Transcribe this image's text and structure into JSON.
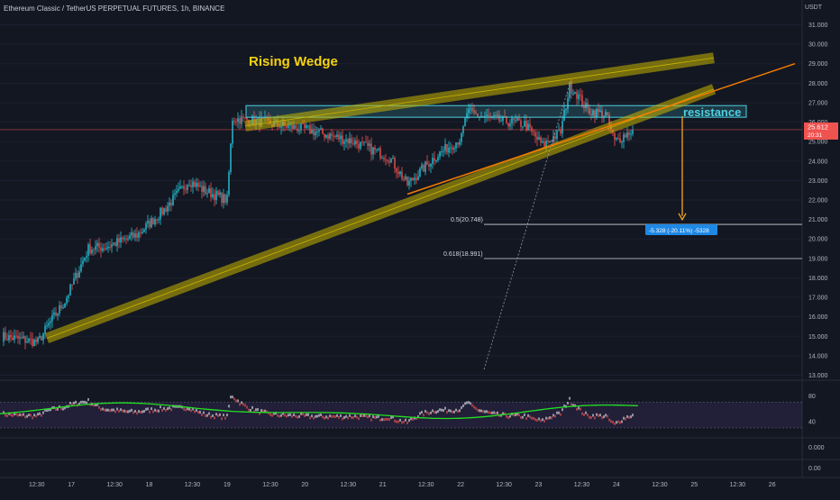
{
  "header": {
    "symbol": "Ethereum Classic / TetherUS PERPETUAL FUTURES, 1h, BINANCE",
    "currency": "USDT"
  },
  "price_axis": {
    "ticks": [
      "31.000",
      "30.000",
      "29.000",
      "28.000",
      "27.000",
      "26.000",
      "25.000",
      "24.000",
      "23.000",
      "22.000",
      "21.000",
      "20.000",
      "19.000",
      "18.000",
      "17.000",
      "16.000",
      "15.000",
      "14.000",
      "13.000"
    ]
  },
  "last_price": {
    "price": "25.612",
    "countdown": "20:31",
    "color": "#ef5350"
  },
  "time_axis": {
    "labels": [
      "12:30",
      "17",
      "12:30",
      "18",
      "12:30",
      "19",
      "12:30",
      "20",
      "12:30",
      "21",
      "12:30",
      "22",
      "12:30",
      "23",
      "12:30",
      "24",
      "12:30",
      "25",
      "12:30",
      "26"
    ]
  },
  "annotations": {
    "pattern_label": "Rising Wedge",
    "resistance_label": "resistance",
    "fib_05": "0.5(20.748)",
    "fib_0618": "0.618(18.991)",
    "measure": "-5.328 (-20.11%) -5328"
  },
  "indicator": {
    "ticks": [
      "80",
      "40"
    ],
    "lower_ticks": [
      "0.000",
      "0.00"
    ]
  },
  "colors": {
    "up": "#26c6da",
    "down": "#ef5350",
    "wedge": "#c9b400",
    "zone": "#4dd0e1",
    "trend": "#f57c00",
    "pattern_label": "#f5d20f",
    "osc_line": "#22e022",
    "measure": "#1e88e5"
  },
  "chart_data": {
    "type": "candlestick",
    "title": "Ethereum Classic / TetherUS PERPETUAL FUTURES, 1h, BINANCE",
    "ylim": [
      13,
      31.5
    ],
    "ylabel": "USDT",
    "x_labels": [
      "12:30",
      "17",
      "12:30",
      "18",
      "12:30",
      "19",
      "12:30",
      "20",
      "12:30",
      "21",
      "12:30",
      "22",
      "12:30",
      "23",
      "12:30",
      "24",
      "12:30",
      "25",
      "12:30",
      "26"
    ],
    "close_anchors": [
      {
        "bar": 0,
        "price": 15.0
      },
      {
        "bar": 20,
        "price": 14.7
      },
      {
        "bar": 26,
        "price": 15.6
      },
      {
        "bar": 35,
        "price": 16.8
      },
      {
        "bar": 48,
        "price": 19.5
      },
      {
        "bar": 58,
        "price": 19.6
      },
      {
        "bar": 75,
        "price": 20.2
      },
      {
        "bar": 90,
        "price": 21.5
      },
      {
        "bar": 104,
        "price": 23.0
      },
      {
        "bar": 112,
        "price": 22.5
      },
      {
        "bar": 125,
        "price": 22.0
      },
      {
        "bar": 128,
        "price": 26.2
      },
      {
        "bar": 145,
        "price": 26.0
      },
      {
        "bar": 170,
        "price": 25.6
      },
      {
        "bar": 195,
        "price": 25.0
      },
      {
        "bar": 215,
        "price": 24.2
      },
      {
        "bar": 225,
        "price": 22.8
      },
      {
        "bar": 240,
        "price": 24.2
      },
      {
        "bar": 255,
        "price": 25.2
      },
      {
        "bar": 258,
        "price": 26.5
      },
      {
        "bar": 275,
        "price": 26.1
      },
      {
        "bar": 290,
        "price": 25.9
      },
      {
        "bar": 300,
        "price": 24.8
      },
      {
        "bar": 310,
        "price": 25.5
      },
      {
        "bar": 315,
        "price": 27.8
      },
      {
        "bar": 318,
        "price": 27.6
      },
      {
        "bar": 325,
        "price": 26.6
      },
      {
        "bar": 335,
        "price": 26.4
      },
      {
        "bar": 340,
        "price": 25.0
      },
      {
        "bar": 350,
        "price": 25.6
      }
    ],
    "wedge_upper": [
      {
        "bar": 135,
        "price": 25.8
      },
      {
        "bar": 395,
        "price": 29.3
      }
    ],
    "wedge_lower": [
      {
        "bar": 25,
        "price": 14.9
      },
      {
        "bar": 395,
        "price": 27.7
      }
    ],
    "resistance_zone": [
      26.25,
      26.85
    ],
    "trendline": [
      {
        "bar": 225,
        "price": 22.3
      },
      {
        "bar": 440,
        "price": 29.0
      }
    ],
    "fib_levels": [
      {
        "label": "0.5",
        "price": 20.748
      },
      {
        "label": "0.618",
        "price": 18.991
      }
    ],
    "projection": {
      "from": 26.3,
      "to": 20.9,
      "change": "-5.328 (-20.11%)"
    },
    "oscillator": {
      "ylim": [
        20,
        100
      ],
      "band": [
        30,
        70
      ]
    },
    "last_price": 25.612
  }
}
